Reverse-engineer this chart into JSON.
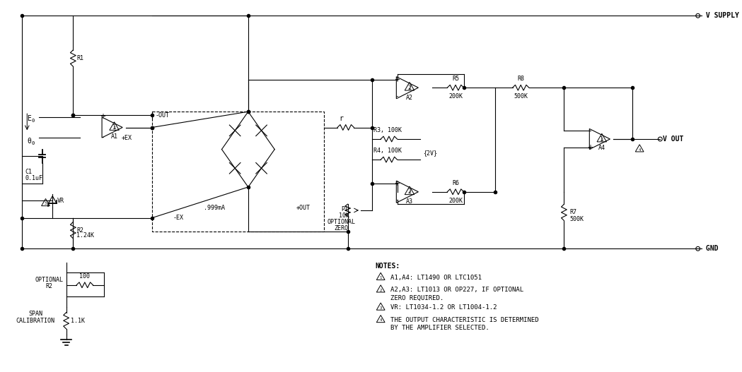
{
  "bg_color": "#ffffff",
  "line_color": "#000000",
  "fig_width": 10.49,
  "fig_height": 5.27,
  "title": "",
  "notes": {
    "header": "NOTES:",
    "line1": "△ 1  A1,A4: LT1490 OR LTC1051",
    "line2": "△ 2  A2,A3: LT1013 OR OP227, IF OPTIONAL",
    "line2b": "       ZERO REQUIRED.",
    "line3": "△ 3  VR: LT1034-1.2 OR LT1004-1.2",
    "line4": "△ 4  THE OUTPUT CHARACTERISTIC IS DETERMINED",
    "line4b": "       BY THE AMPLIFIER SELECTED."
  }
}
